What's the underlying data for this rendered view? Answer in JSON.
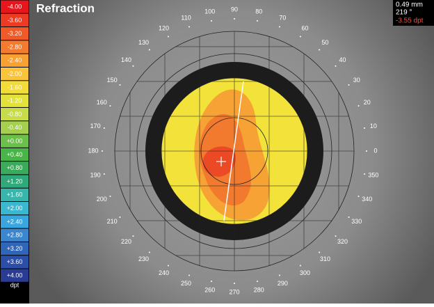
{
  "title": "Refraction",
  "scale": [
    {
      "label": "-4.00",
      "color": "#e8161c"
    },
    {
      "label": "-3.60",
      "color": "#ec3b22"
    },
    {
      "label": "-3.20",
      "color": "#f05a28"
    },
    {
      "label": "-2.80",
      "color": "#f47a2e"
    },
    {
      "label": "-2.40",
      "color": "#f8a032"
    },
    {
      "label": "-2.00",
      "color": "#f9c43a"
    },
    {
      "label": "-1.60",
      "color": "#f2dd38"
    },
    {
      "label": "-1.20",
      "color": "#e2e23a"
    },
    {
      "label": "-0.80",
      "color": "#c8dc4a"
    },
    {
      "label": "-0.40",
      "color": "#a5cf4e"
    },
    {
      "label": "+0.00",
      "color": "#6cbf4a"
    },
    {
      "label": "+0.40",
      "color": "#49b447"
    },
    {
      "label": "+0.80",
      "color": "#3aab5a"
    },
    {
      "label": "+1.20",
      "color": "#2fa87a"
    },
    {
      "label": "+1.60",
      "color": "#38b6ac"
    },
    {
      "label": "+2.00",
      "color": "#3cb7d0"
    },
    {
      "label": "+2.40",
      "color": "#3aa6df"
    },
    {
      "label": "+2.80",
      "color": "#3a86cf"
    },
    {
      "label": "+3.20",
      "color": "#2f66b8"
    },
    {
      "label": "+3.60",
      "color": "#2b4ea6"
    },
    {
      "label": "+4.00",
      "color": "#2a3b93"
    }
  ],
  "scale_unit": "dpt",
  "info": {
    "distance": "0.49 mm",
    "angle": "219 °",
    "refraction": "-3.55 dpt"
  },
  "angle_labels": [
    0,
    10,
    20,
    30,
    40,
    50,
    60,
    70,
    80,
    90,
    100,
    110,
    120,
    130,
    140,
    150,
    160,
    170,
    180,
    190,
    200,
    210,
    220,
    230,
    240,
    250,
    260,
    270,
    280,
    290,
    300,
    310,
    320,
    330,
    340,
    350
  ]
}
